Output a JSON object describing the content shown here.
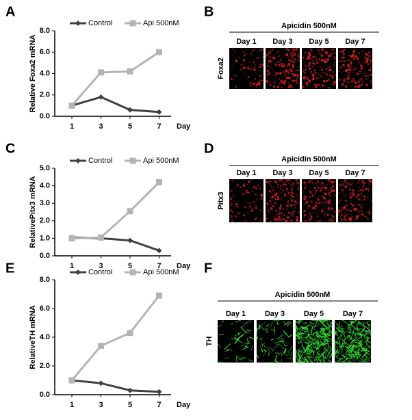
{
  "chart_data": [
    {
      "type": "line",
      "panel_label": "A",
      "y_label": "Relative Foxa2 mRNA",
      "x_label": "Day",
      "categories": [
        "1",
        "3",
        "5",
        "7"
      ],
      "series": [
        {
          "name": "Control",
          "color": "#404040",
          "marker": "diamond",
          "values": [
            1.0,
            1.8,
            0.6,
            0.4
          ]
        },
        {
          "name": "Api 500nM",
          "color": "#b4b4b4",
          "marker": "square",
          "values": [
            1.0,
            4.1,
            4.2,
            6.0
          ]
        }
      ],
      "ylim": [
        0,
        8
      ],
      "yticks": [
        {
          "value": 0,
          "label": "0.0"
        },
        {
          "value": 2,
          "label": "2.0"
        },
        {
          "value": 4,
          "label": "4.0"
        },
        {
          "value": 6,
          "label": "6.0"
        },
        {
          "value": 8,
          "label": "8.0"
        }
      ],
      "legend": "top"
    },
    {
      "type": "line",
      "panel_label": "C",
      "y_label": "RelativePitx3 mRNA",
      "x_label": "Day",
      "categories": [
        "1",
        "3",
        "5",
        "7"
      ],
      "series": [
        {
          "name": "Control",
          "color": "#404040",
          "marker": "diamond",
          "values": [
            1.05,
            1.0,
            0.88,
            0.3
          ]
        },
        {
          "name": "Api 500nM",
          "color": "#b4b4b4",
          "marker": "square",
          "values": [
            1.0,
            1.05,
            2.55,
            4.2
          ]
        }
      ],
      "ylim": [
        0,
        5
      ],
      "yticks": [
        {
          "value": 0,
          "label": "0.0"
        },
        {
          "value": 1,
          "label": "1.0"
        },
        {
          "value": 2,
          "label": "2.0"
        },
        {
          "value": 3,
          "label": "3.0"
        },
        {
          "value": 4,
          "label": "4.0"
        },
        {
          "value": 5,
          "label": "5.0"
        }
      ],
      "legend": "top"
    },
    {
      "type": "line",
      "panel_label": "E",
      "y_label": "RelativeTH mRNA",
      "x_label": "Day",
      "categories": [
        "1",
        "3",
        "5",
        "7"
      ],
      "series": [
        {
          "name": "Control",
          "color": "#404040",
          "marker": "diamond",
          "values": [
            1.0,
            0.8,
            0.3,
            0.2
          ]
        },
        {
          "name": "Api 500nM",
          "color": "#b4b4b4",
          "marker": "square",
          "values": [
            1.0,
            3.4,
            4.3,
            6.9
          ]
        }
      ],
      "ylim": [
        0,
        8
      ],
      "yticks": [
        {
          "value": 0,
          "label": "0.0"
        },
        {
          "value": 2,
          "label": "2.0"
        },
        {
          "value": 4,
          "label": "4.0"
        },
        {
          "value": 6,
          "label": "6.0"
        },
        {
          "value": 8,
          "label": "8.0"
        }
      ],
      "legend": "top"
    }
  ],
  "image_panels": [
    {
      "panel_label": "B",
      "title": "Apicidin 500nM",
      "columns": [
        "Day 1",
        "Day 3",
        "Day 5",
        "Day 7"
      ],
      "row_label": "Foxa2",
      "stain_color": "#e02020"
    },
    {
      "panel_label": "D",
      "title": "Apicidin 500nM",
      "columns": [
        "Day 1",
        "Day 3",
        "Day 5",
        "Day 7"
      ],
      "row_label": "Pitx3",
      "stain_color": "#e02020"
    },
    {
      "panel_label": "F",
      "title": "Apicidin 500nM",
      "columns": [
        "Day 1",
        "Day 3",
        "Day 5",
        "Day 7"
      ],
      "row_label": "TH",
      "stain_color": "#30e030"
    }
  ]
}
